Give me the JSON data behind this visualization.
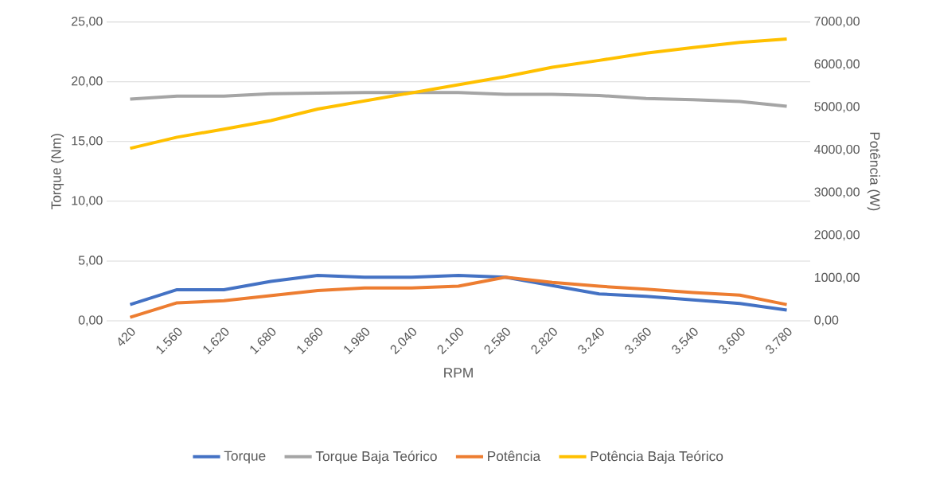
{
  "chart_data": {
    "type": "line",
    "xlabel": "RPM",
    "ylabel": "Torque (Nm)",
    "y2label": "Potência (W)",
    "categories": [
      "420",
      "1.560",
      "1.620",
      "1.680",
      "1.860",
      "1.980",
      "2.040",
      "2.100",
      "2.580",
      "2.820",
      "3.240",
      "3.360",
      "3.540",
      "3.600",
      "3.780"
    ],
    "series": [
      {
        "name": "Torque",
        "color": "#4472c4",
        "values": [
          1.35,
          2.6,
          2.6,
          3.3,
          3.8,
          3.65,
          3.65,
          3.8,
          3.65,
          2.95,
          2.25,
          2.05,
          1.75,
          1.45,
          0.9
        ]
      },
      {
        "name": "Torque Baja Teórico",
        "color": "#a5a5a5",
        "values": [
          18.55,
          18.8,
          18.8,
          19.0,
          19.05,
          19.1,
          19.1,
          19.1,
          18.95,
          18.95,
          18.85,
          18.6,
          18.5,
          18.35,
          17.95
        ]
      },
      {
        "name": "Potência",
        "color": "#ed7d31",
        "axis": "y2",
        "values": [
          80,
          420,
          470,
          590,
          710,
          770,
          770,
          810,
          1020,
          900,
          810,
          740,
          660,
          600,
          380
        ]
      },
      {
        "name": "Potência Baja Teórico",
        "color": "#ffc000",
        "axis": "y2",
        "values": [
          4040,
          4300,
          4490,
          4690,
          4960,
          5150,
          5340,
          5530,
          5720,
          5940,
          6100,
          6270,
          6400,
          6520,
          6600
        ]
      }
    ],
    "ylim": [
      0,
      25
    ],
    "yticks": [
      {
        "value": 0,
        "label": "0,00"
      },
      {
        "value": 5,
        "label": "5,00"
      },
      {
        "value": 10,
        "label": "10,00"
      },
      {
        "value": 15,
        "label": "15,00"
      },
      {
        "value": 20,
        "label": "20,00"
      },
      {
        "value": 25,
        "label": "25,00"
      }
    ],
    "y2lim": [
      0,
      7000
    ],
    "y2ticks": [
      {
        "value": 0,
        "label": "0,00"
      },
      {
        "value": 1000,
        "label": "1000,00"
      },
      {
        "value": 2000,
        "label": "2000,00"
      },
      {
        "value": 3000,
        "label": "3000,00"
      },
      {
        "value": 4000,
        "label": "4000,00"
      },
      {
        "value": 5000,
        "label": "5000,00"
      },
      {
        "value": 6000,
        "label": "6000,00"
      },
      {
        "value": 7000,
        "label": "7000,00"
      }
    ],
    "grid": "y",
    "legend": "bottom",
    "marker": "none",
    "line_style": "solid"
  }
}
